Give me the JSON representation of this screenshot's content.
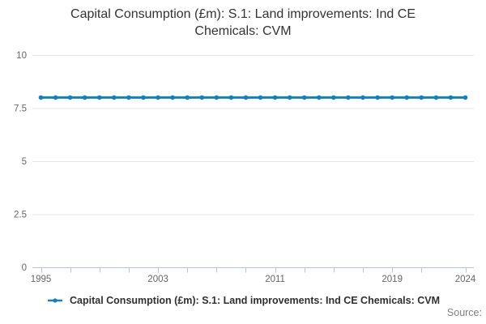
{
  "title": "Capital Consumption (£m): S.1: Land improvements: Ind CE Chemicals: CVM",
  "source_label": "Source:",
  "legend": {
    "label": "Capital Consumption (£m): S.1: Land improvements: Ind CE Chemicals: CVM",
    "marker": "line-dot-icon"
  },
  "colors": {
    "series": "#1180c4",
    "grid": "#e6e6e6",
    "axis": "#b6c6da",
    "tick_text": "#666666",
    "title_text": "#333333",
    "legend_text": "#303030",
    "source_text": "#808080"
  },
  "chart_data": {
    "type": "line",
    "title": "Capital Consumption (£m): S.1: Land improvements: Ind CE Chemicals: CVM",
    "xlabel": "",
    "ylabel": "",
    "x": [
      1995,
      1996,
      1997,
      1998,
      1999,
      2000,
      2001,
      2002,
      2003,
      2004,
      2005,
      2006,
      2007,
      2008,
      2009,
      2010,
      2011,
      2012,
      2013,
      2014,
      2015,
      2016,
      2017,
      2018,
      2019,
      2020,
      2021,
      2022,
      2023,
      2024
    ],
    "series": [
      {
        "name": "Capital Consumption (£m): S.1: Land improvements: Ind CE Chemicals: CVM",
        "values": [
          8,
          8,
          8,
          8,
          8,
          8,
          8,
          8,
          8,
          8,
          8,
          8,
          8,
          8,
          8,
          8,
          8,
          8,
          8,
          8,
          8,
          8,
          8,
          8,
          8,
          8,
          8,
          8,
          8,
          8
        ]
      }
    ],
    "ylim": [
      0,
      10
    ],
    "yticks": [
      0,
      2.5,
      5,
      7.5,
      10
    ],
    "ytick_labels": [
      "0",
      "2.5",
      "5",
      "7.5",
      "10"
    ],
    "xtick_years": [
      1995,
      1997,
      1999,
      2001,
      2003,
      2005,
      2007,
      2009,
      2011,
      2013,
      2015,
      2017,
      2019,
      2021,
      2024
    ],
    "xlabel_years": [
      1995,
      2003,
      2011,
      2019,
      2024
    ],
    "grid": "horizontal",
    "legend_position": "bottom",
    "marker": "dot"
  }
}
